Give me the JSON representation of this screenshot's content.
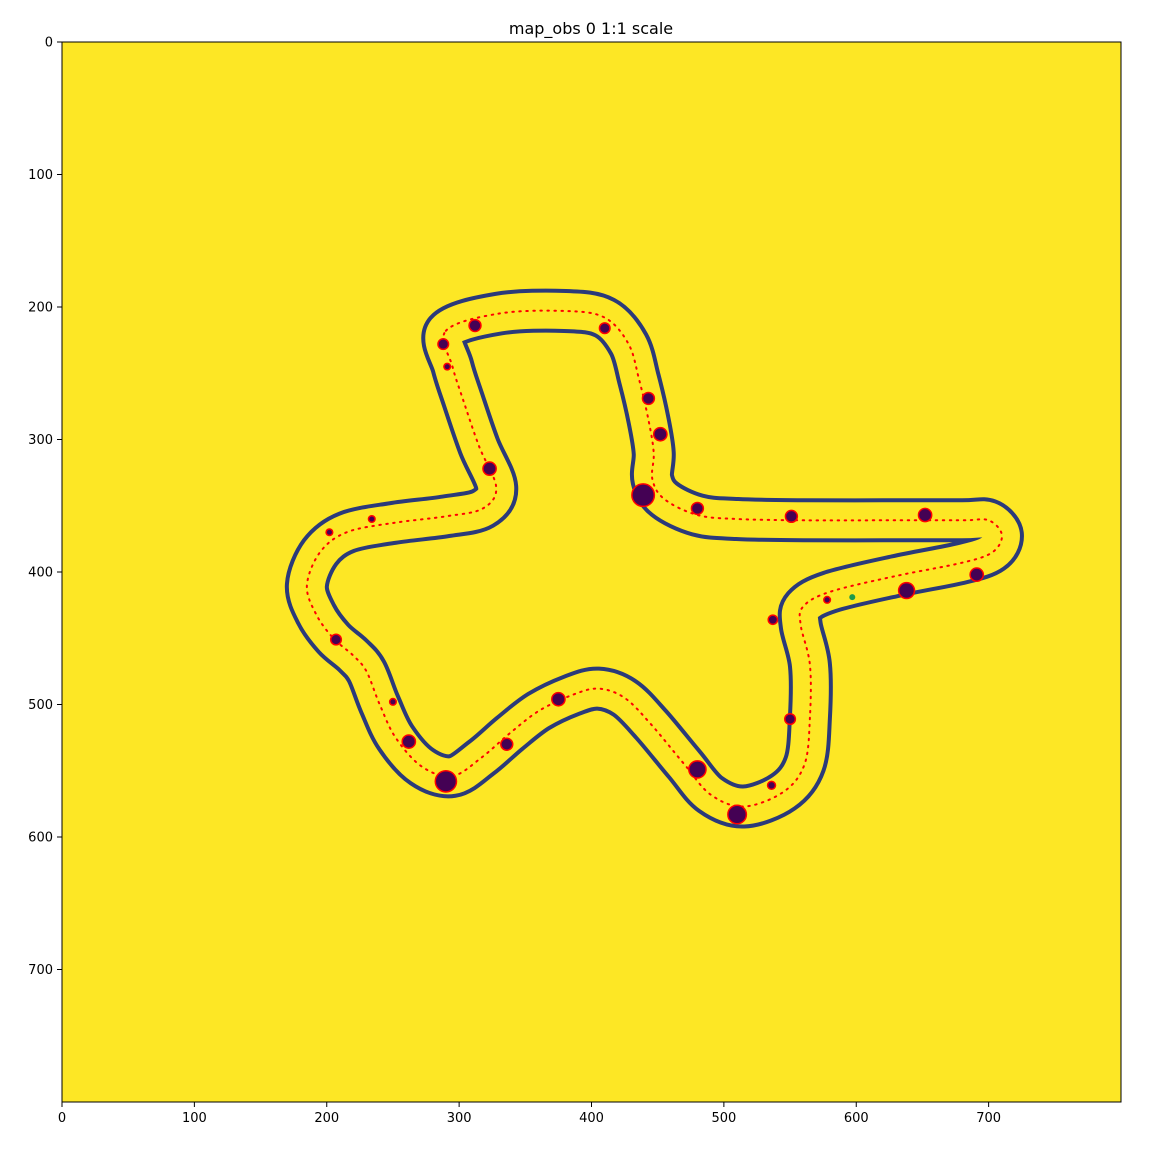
{
  "chart_data": {
    "type": "scatter",
    "title": "map_obs 0 1:1 scale",
    "xlabel": "",
    "ylabel": "",
    "xlim": [
      0,
      800
    ],
    "ylim": [
      800,
      0
    ],
    "x_ticks": [
      0,
      100,
      200,
      300,
      400,
      500,
      600,
      700
    ],
    "y_ticks": [
      0,
      100,
      200,
      300,
      400,
      500,
      600,
      700
    ],
    "grid": false,
    "legend": "none",
    "colors": {
      "background": "#fde725",
      "track_border": "#2b3a7a",
      "obstacle_fill": "#440154",
      "obstacle_edge": "#ff0000",
      "centerline": "#ff0000",
      "start_point": "#1f9a4a"
    },
    "track_centerline": [
      [
        290,
        218
      ],
      [
        330,
        205
      ],
      [
        380,
        203
      ],
      [
        410,
        208
      ],
      [
        428,
        228
      ],
      [
        436,
        255
      ],
      [
        443,
        285
      ],
      [
        447,
        310
      ],
      [
        446,
        330
      ],
      [
        455,
        345
      ],
      [
        480,
        357
      ],
      [
        510,
        360
      ],
      [
        560,
        361
      ],
      [
        620,
        361
      ],
      [
        680,
        361
      ],
      [
        700,
        361
      ],
      [
        710,
        372
      ],
      [
        703,
        385
      ],
      [
        680,
        393
      ],
      [
        630,
        403
      ],
      [
        580,
        415
      ],
      [
        560,
        426
      ],
      [
        558,
        440
      ],
      [
        565,
        470
      ],
      [
        565,
        510
      ],
      [
        561,
        545
      ],
      [
        545,
        566
      ],
      [
        515,
        577
      ],
      [
        490,
        568
      ],
      [
        470,
        545
      ],
      [
        445,
        515
      ],
      [
        425,
        495
      ],
      [
        405,
        488
      ],
      [
        385,
        493
      ],
      [
        360,
        505
      ],
      [
        338,
        522
      ],
      [
        317,
        540
      ],
      [
        295,
        554
      ],
      [
        272,
        547
      ],
      [
        252,
        525
      ],
      [
        240,
        500
      ],
      [
        230,
        475
      ],
      [
        220,
        463
      ],
      [
        205,
        450
      ],
      [
        192,
        432
      ],
      [
        185,
        410
      ],
      [
        195,
        385
      ],
      [
        215,
        370
      ],
      [
        250,
        363
      ],
      [
        290,
        358
      ],
      [
        318,
        352
      ],
      [
        328,
        336
      ],
      [
        315,
        305
      ],
      [
        303,
        270
      ],
      [
        295,
        245
      ],
      [
        290,
        218
      ]
    ],
    "obstacles": [
      {
        "x": 288,
        "y": 228,
        "r": 4
      },
      {
        "x": 312,
        "y": 214,
        "r": 4.5
      },
      {
        "x": 410,
        "y": 216,
        "r": 4
      },
      {
        "x": 291,
        "y": 245,
        "r": 2.5
      },
      {
        "x": 443,
        "y": 269,
        "r": 4.5
      },
      {
        "x": 452,
        "y": 296,
        "r": 5
      },
      {
        "x": 323,
        "y": 322,
        "r": 5
      },
      {
        "x": 439,
        "y": 342,
        "r": 8.5
      },
      {
        "x": 480,
        "y": 352,
        "r": 4.5
      },
      {
        "x": 551,
        "y": 358,
        "r": 4.5
      },
      {
        "x": 652,
        "y": 357,
        "r": 5
      },
      {
        "x": 234,
        "y": 360,
        "r": 2.5
      },
      {
        "x": 202,
        "y": 370,
        "r": 2.5
      },
      {
        "x": 691,
        "y": 402,
        "r": 5
      },
      {
        "x": 638,
        "y": 414,
        "r": 6
      },
      {
        "x": 578,
        "y": 421,
        "r": 2.5
      },
      {
        "x": 537,
        "y": 436,
        "r": 3.5
      },
      {
        "x": 207,
        "y": 451,
        "r": 4
      },
      {
        "x": 250,
        "y": 498,
        "r": 2.5
      },
      {
        "x": 375,
        "y": 496,
        "r": 5
      },
      {
        "x": 550,
        "y": 511,
        "r": 4
      },
      {
        "x": 262,
        "y": 528,
        "r": 5
      },
      {
        "x": 336,
        "y": 530,
        "r": 4.5
      },
      {
        "x": 480,
        "y": 549,
        "r": 6.5
      },
      {
        "x": 290,
        "y": 558,
        "r": 8
      },
      {
        "x": 536,
        "y": 561,
        "r": 3
      },
      {
        "x": 510,
        "y": 583,
        "r": 7
      }
    ],
    "start_point": {
      "x": 597,
      "y": 419
    }
  }
}
